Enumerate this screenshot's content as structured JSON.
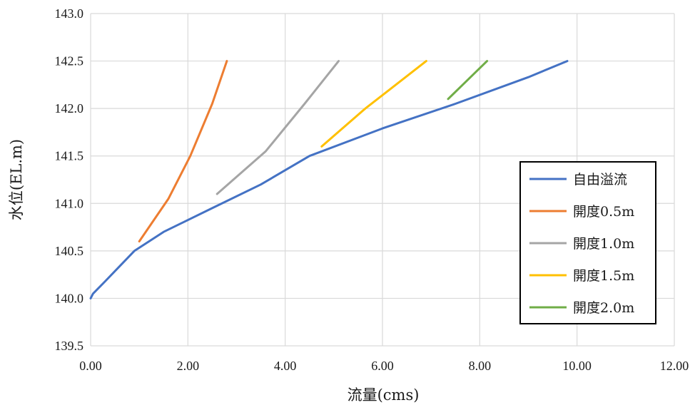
{
  "chart_data": {
    "type": "line",
    "title": "",
    "xlabel": "流量(cms)",
    "ylabel": "水位(EL.m)",
    "xlim": [
      0,
      12
    ],
    "ylim": [
      139.5,
      143.0
    ],
    "x_ticks": [
      "0.00",
      "2.00",
      "4.00",
      "6.00",
      "8.00",
      "10.00",
      "12.00"
    ],
    "y_ticks": [
      "139.5",
      "140.0",
      "140.5",
      "141.0",
      "141.5",
      "142.0",
      "142.5",
      "143.0"
    ],
    "grid": true,
    "legend_position": "right",
    "series": [
      {
        "name": "自由溢流",
        "color": "#4472C4",
        "points": [
          [
            0.0,
            140.0
          ],
          [
            0.05,
            140.05
          ],
          [
            0.3,
            140.18
          ],
          [
            0.9,
            140.5
          ],
          [
            1.5,
            140.7
          ],
          [
            2.5,
            140.95
          ],
          [
            3.5,
            141.2
          ],
          [
            4.5,
            141.5
          ],
          [
            6.0,
            141.79
          ],
          [
            7.5,
            142.05
          ],
          [
            9.0,
            142.33
          ],
          [
            9.8,
            142.5
          ]
        ]
      },
      {
        "name": "開度0.5m",
        "color": "#ED7D31",
        "points": [
          [
            1.0,
            140.6
          ],
          [
            1.6,
            141.05
          ],
          [
            2.05,
            141.5
          ],
          [
            2.5,
            142.05
          ],
          [
            2.8,
            142.5
          ]
        ]
      },
      {
        "name": "開度1.0m",
        "color": "#A5A5A5",
        "points": [
          [
            2.6,
            141.1
          ],
          [
            3.6,
            141.55
          ],
          [
            4.4,
            142.05
          ],
          [
            5.1,
            142.5
          ]
        ]
      },
      {
        "name": "開度1.5m",
        "color": "#FFC000",
        "points": [
          [
            4.75,
            141.6
          ],
          [
            5.65,
            142.0
          ],
          [
            6.9,
            142.5
          ]
        ]
      },
      {
        "name": "開度2.0m",
        "color": "#70AD47",
        "points": [
          [
            7.35,
            142.1
          ],
          [
            8.15,
            142.5
          ]
        ]
      }
    ]
  }
}
